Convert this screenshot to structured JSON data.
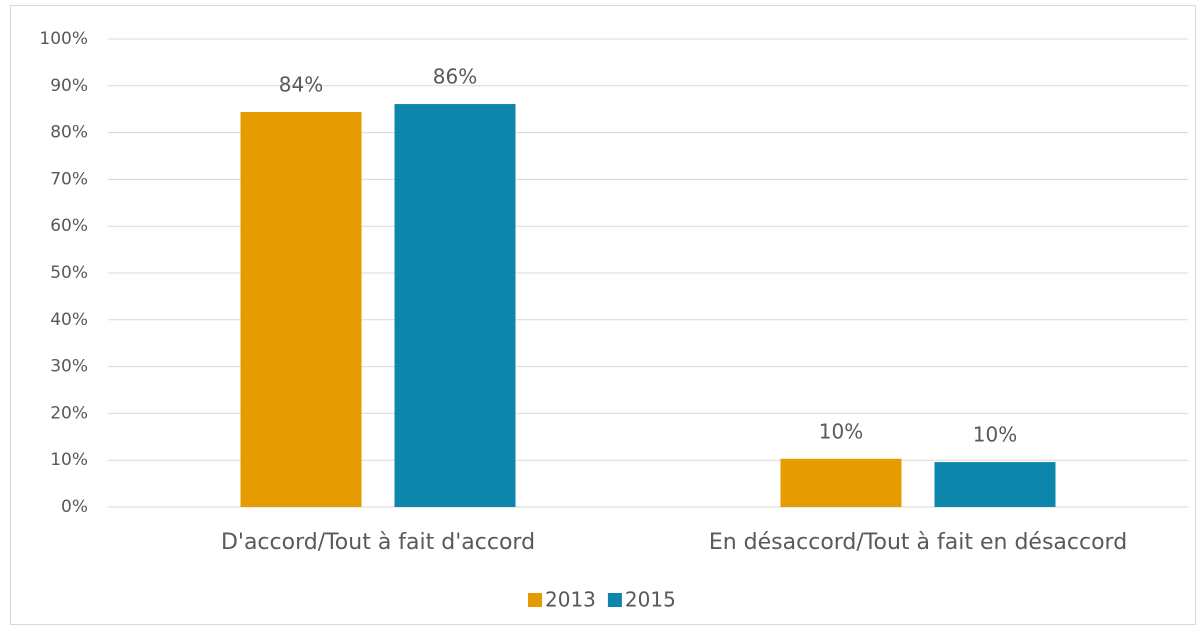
{
  "chart_data": {
    "type": "bar",
    "categories": [
      "D'accord/Tout à fait d'accord",
      "En désaccord/Tout à fait en désaccord"
    ],
    "series": [
      {
        "name": "2013",
        "color": "#e69c00",
        "values": [
          84.4,
          10.3
        ],
        "value_labels": [
          "84%",
          "10%"
        ]
      },
      {
        "name": "2015",
        "color": "#0e86ac",
        "values": [
          86.1,
          9.6
        ],
        "value_labels": [
          "86%",
          "10%"
        ]
      }
    ],
    "ylim": [
      0,
      100
    ],
    "yticks": [
      {
        "value": 0,
        "label": "0%"
      },
      {
        "value": 10,
        "label": "10%"
      },
      {
        "value": 20,
        "label": "20%"
      },
      {
        "value": 30,
        "label": "30%"
      },
      {
        "value": 40,
        "label": "40%"
      },
      {
        "value": 50,
        "label": "50%"
      },
      {
        "value": 60,
        "label": "60%"
      },
      {
        "value": 70,
        "label": "70%"
      },
      {
        "value": 80,
        "label": "80%"
      },
      {
        "value": 90,
        "label": "90%"
      },
      {
        "value": 100,
        "label": "100%"
      }
    ],
    "grid": true,
    "legend": "bottom"
  }
}
